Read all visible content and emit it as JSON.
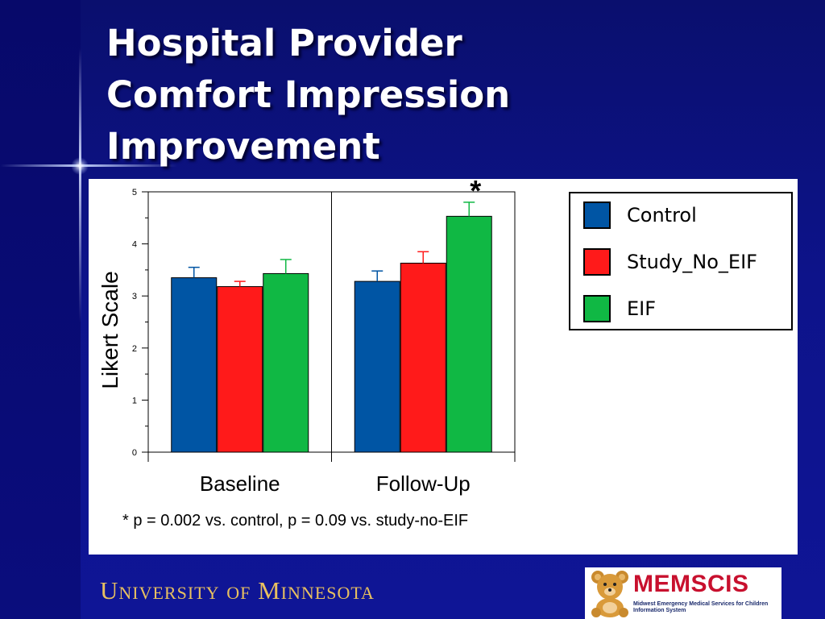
{
  "slide": {
    "title_lines": [
      "Hospital Provider",
      "Comfort Impression",
      "Improvement"
    ],
    "footnote": "* p = 0.002 vs. control, p = 0.09 vs. study-no-EIF",
    "footer_left": "University of Minnesota",
    "logo_name": "MEMSCIS",
    "logo_subtitle": "Midwest Emergency Medical Services for Children Information System",
    "colors": {
      "background": "#0d138a",
      "title": "#ffffff",
      "footer_text": "#e8c060"
    }
  },
  "chart_data": {
    "type": "bar",
    "categories": [
      "Baseline",
      "Follow-Up"
    ],
    "series": [
      {
        "name": "Control",
        "color": "#0055a4",
        "values": [
          3.35,
          3.28
        ],
        "error": [
          0.2,
          0.2
        ]
      },
      {
        "name": "Study_No_EIF",
        "color": "#ff1a1a",
        "values": [
          3.18,
          3.63
        ],
        "error": [
          0.1,
          0.22
        ]
      },
      {
        "name": "EIF",
        "color": "#10b844",
        "values": [
          3.43,
          4.53
        ],
        "error": [
          0.27,
          0.27
        ]
      }
    ],
    "ylabel": "Likert Scale",
    "ylim": [
      0,
      5
    ],
    "yticks": [
      "0",
      "1",
      "2",
      "3",
      "4",
      "5"
    ],
    "annotations": [
      {
        "text": "*",
        "category": "Follow-Up",
        "series": "EIF"
      }
    ],
    "legend": "right",
    "grid": false
  }
}
